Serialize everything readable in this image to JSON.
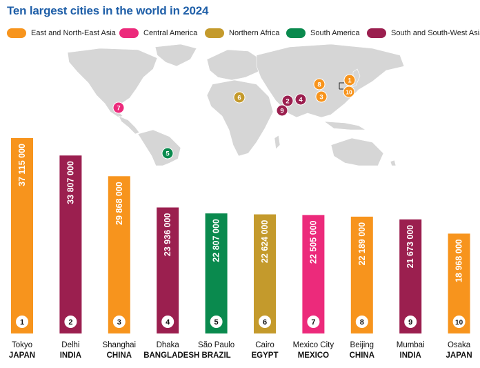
{
  "title": "Ten largest cities in the world in 2024",
  "legend": [
    {
      "label": "East and North-East Asia",
      "color": "#f7941d"
    },
    {
      "label": "Central America",
      "color": "#ec2a7b"
    },
    {
      "label": "Northern Africa",
      "color": "#c49a2c"
    },
    {
      "label": "South America",
      "color": "#0a8a4e"
    },
    {
      "label": "South and South-West Asia",
      "color": "#9b1f4f"
    }
  ],
  "chart_data": {
    "type": "bar",
    "categories": [
      "Tokyo",
      "Delhi",
      "Shanghai",
      "Dhaka",
      "São Paulo",
      "Cairo",
      "Mexico City",
      "Beijing",
      "Mumbai",
      "Osaka"
    ],
    "countries": [
      "JAPAN",
      "INDIA",
      "CHINA",
      "BANGLADESH",
      "BRAZIL",
      "EGYPT",
      "MEXICO",
      "CHINA",
      "INDIA",
      "JAPAN"
    ],
    "ranks": [
      "1",
      "2",
      "3",
      "4",
      "5",
      "6",
      "7",
      "8",
      "9",
      "10"
    ],
    "values": [
      37115000,
      33807000,
      29868000,
      23936000,
      22807000,
      22624000,
      22505000,
      22189000,
      21673000,
      18968000
    ],
    "value_labels": [
      "37 115 000",
      "33 807 000",
      "29 868 000",
      "23 936 000",
      "22 807 000",
      "22 624 000",
      "22 505 000",
      "22 189 000",
      "21 673 000",
      "18 968 000"
    ],
    "regions": [
      "East and North-East Asia",
      "South and South-West Asia",
      "East and North-East Asia",
      "South and South-West Asia",
      "South America",
      "Northern Africa",
      "Central America",
      "East and North-East Asia",
      "South and South-West Asia",
      "East and North-East Asia"
    ],
    "ylim": [
      0,
      37115000
    ]
  },
  "map": {
    "markers": [
      {
        "rank": "1",
        "region": "East and North-East Asia"
      },
      {
        "rank": "2",
        "region": "South and South-West Asia"
      },
      {
        "rank": "3",
        "region": "East and North-East Asia"
      },
      {
        "rank": "4",
        "region": "South and South-West Asia"
      },
      {
        "rank": "5",
        "region": "South America"
      },
      {
        "rank": "6",
        "region": "Northern Africa"
      },
      {
        "rank": "7",
        "region": "Central America"
      },
      {
        "rank": "8",
        "region": "East and North-East Asia"
      },
      {
        "rank": "9",
        "region": "South and South-West Asia"
      },
      {
        "rank": "10",
        "region": "East and North-East Asia"
      }
    ]
  }
}
